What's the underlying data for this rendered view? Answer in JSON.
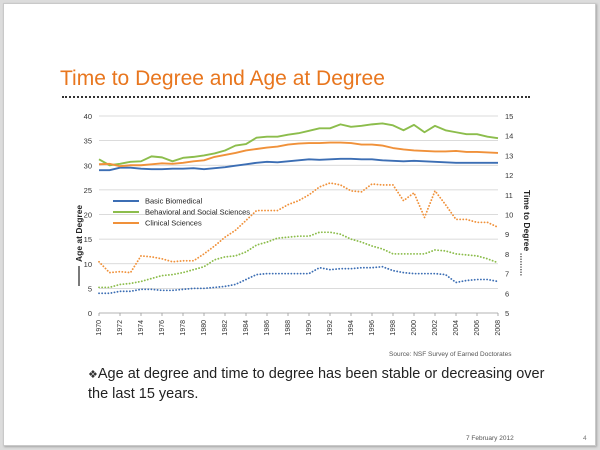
{
  "slide": {
    "title": "Time to Degree and Age at Degree",
    "source": "Source: NSF Survey of Earned Doctorates",
    "bullet_mark": "❖",
    "bullet_text": "Age at degree and time to degree has been stable or decreasing over the last 15 years.",
    "date": "7 February 2012",
    "page_number": "4"
  },
  "chart_data": {
    "type": "line",
    "ylabel_left": "Age at Degree",
    "ylabel_right": "Time to Degree",
    "ylim_left": [
      0,
      40
    ],
    "ylim_right": [
      5,
      15
    ],
    "yticks_left": [
      0,
      5,
      10,
      15,
      20,
      25,
      30,
      35,
      40
    ],
    "yticks_right": [
      5,
      6,
      7,
      8,
      9,
      10,
      11,
      12,
      13,
      14,
      15
    ],
    "xlim": [
      1970,
      2008
    ],
    "xticks": [
      1970,
      1972,
      1974,
      1976,
      1978,
      1980,
      1982,
      1984,
      1986,
      1988,
      1990,
      1992,
      1994,
      1996,
      1998,
      2000,
      2002,
      2004,
      2006,
      2008
    ],
    "grid": "horizontal",
    "legend_position": "left-middle",
    "legend": [
      {
        "name": "Basic Biomedical",
        "color": "#3c6eb4"
      },
      {
        "name": "Behavioral and Social Sciences",
        "color": "#8cbd4c"
      },
      {
        "name": "Clinical Sciences",
        "color": "#f0913a"
      }
    ],
    "x": [
      1970,
      1971,
      1972,
      1973,
      1974,
      1975,
      1976,
      1977,
      1978,
      1979,
      1980,
      1981,
      1982,
      1983,
      1984,
      1985,
      1986,
      1987,
      1988,
      1989,
      1990,
      1991,
      1992,
      1993,
      1994,
      1995,
      1996,
      1997,
      1998,
      1999,
      2000,
      2001,
      2002,
      2003,
      2004,
      2005,
      2006,
      2007,
      2008
    ],
    "series": [
      {
        "name": "Basic Biomedical",
        "measure": "Age at Degree",
        "axis": "left",
        "style": "solid",
        "color": "#3c6eb4",
        "values": [
          29.0,
          29.0,
          29.5,
          29.5,
          29.3,
          29.2,
          29.2,
          29.3,
          29.3,
          29.4,
          29.2,
          29.4,
          29.6,
          29.9,
          30.2,
          30.5,
          30.7,
          30.6,
          30.8,
          31.0,
          31.2,
          31.1,
          31.2,
          31.3,
          31.3,
          31.2,
          31.2,
          31.0,
          30.9,
          30.8,
          30.9,
          30.8,
          30.7,
          30.6,
          30.5,
          30.5,
          30.5,
          30.5,
          30.5
        ]
      },
      {
        "name": "Behavioral and Social Sciences",
        "measure": "Age at Degree",
        "axis": "left",
        "style": "solid",
        "color": "#8cbd4c",
        "values": [
          31.2,
          30.0,
          30.3,
          30.7,
          30.8,
          31.8,
          31.6,
          30.8,
          31.5,
          31.7,
          32.0,
          32.4,
          33.0,
          34.0,
          34.3,
          35.6,
          35.8,
          35.8,
          36.2,
          36.5,
          37.0,
          37.5,
          37.5,
          38.3,
          37.8,
          38.0,
          38.3,
          38.5,
          38.1,
          37.1,
          38.2,
          36.7,
          38.0,
          37.1,
          36.7,
          36.3,
          36.3,
          35.8,
          35.5
        ]
      },
      {
        "name": "Clinical Sciences",
        "measure": "Age at Degree",
        "axis": "left",
        "style": "solid",
        "color": "#f0913a",
        "values": [
          30.2,
          30.3,
          29.8,
          30.0,
          30.0,
          30.2,
          30.4,
          30.3,
          30.5,
          30.8,
          31.0,
          31.7,
          32.1,
          32.5,
          33.0,
          33.3,
          33.6,
          33.8,
          34.2,
          34.4,
          34.5,
          34.5,
          34.6,
          34.6,
          34.5,
          34.2,
          34.2,
          34.0,
          33.5,
          33.2,
          33.0,
          32.9,
          32.8,
          32.8,
          32.9,
          32.7,
          32.7,
          32.6,
          32.5
        ]
      },
      {
        "name": "Basic Biomedical",
        "measure": "Time to Degree",
        "axis": "right",
        "style": "dotted",
        "color": "#3c6eb4",
        "values": [
          6.0,
          6.0,
          6.1,
          6.1,
          6.2,
          6.2,
          6.15,
          6.15,
          6.2,
          6.25,
          6.25,
          6.3,
          6.35,
          6.45,
          6.7,
          6.95,
          7.0,
          7.0,
          7.0,
          7.0,
          7.0,
          7.3,
          7.2,
          7.25,
          7.25,
          7.3,
          7.3,
          7.35,
          7.15,
          7.05,
          7.0,
          7.0,
          7.0,
          6.95,
          6.55,
          6.65,
          6.7,
          6.7,
          6.6
        ]
      },
      {
        "name": "Behavioral and Social Sciences",
        "measure": "Time to Degree",
        "axis": "right",
        "style": "dotted",
        "color": "#8cbd4c",
        "values": [
          6.3,
          6.3,
          6.45,
          6.5,
          6.6,
          6.75,
          6.9,
          6.95,
          7.05,
          7.2,
          7.35,
          7.7,
          7.85,
          7.9,
          8.1,
          8.45,
          8.6,
          8.8,
          8.85,
          8.9,
          8.9,
          9.1,
          9.1,
          9.0,
          8.75,
          8.6,
          8.4,
          8.25,
          8.0,
          8.0,
          8.0,
          8.0,
          8.2,
          8.15,
          8.0,
          7.95,
          7.9,
          7.75,
          7.55
        ]
      },
      {
        "name": "Clinical Sciences",
        "measure": "Time to Degree",
        "axis": "right",
        "style": "dotted",
        "color": "#f0913a",
        "values": [
          7.6,
          7.05,
          7.1,
          7.05,
          7.9,
          7.85,
          7.75,
          7.6,
          7.65,
          7.65,
          8.0,
          8.4,
          8.85,
          9.2,
          9.7,
          10.2,
          10.2,
          10.2,
          10.5,
          10.7,
          11.0,
          11.4,
          11.6,
          11.5,
          11.2,
          11.15,
          11.55,
          11.5,
          11.5,
          10.7,
          11.1,
          9.85,
          11.2,
          10.5,
          9.75,
          9.75,
          9.6,
          9.6,
          9.35
        ]
      }
    ]
  }
}
